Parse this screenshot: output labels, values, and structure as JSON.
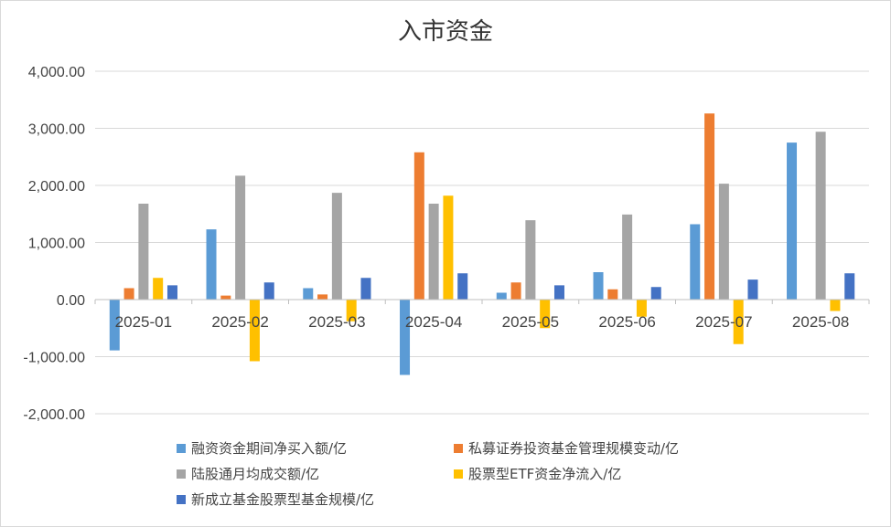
{
  "chart_data": {
    "type": "bar",
    "title": "入市资金",
    "categories": [
      "2025-01",
      "2025-02",
      "2025-03",
      "2025-04",
      "2025-05",
      "2025-06",
      "2025-07",
      "2025-08"
    ],
    "ylim": [
      -2000,
      4000
    ],
    "yticks": [
      4000,
      3000,
      2000,
      1000,
      0,
      -1000,
      -2000
    ],
    "ytick_labels": [
      "4,000.00",
      "3,000.00",
      "2,000.00",
      "1,000.00",
      "0.00",
      "-1,000.00",
      "-2,000.00"
    ],
    "grid": true,
    "legend_position": "bottom",
    "series": [
      {
        "name": "融资资金期间净买入额/亿",
        "color": "#5b9bd5",
        "values": [
          -890,
          1230,
          200,
          -1320,
          120,
          480,
          1320,
          2750
        ]
      },
      {
        "name": "私募证券投资基金管理规模变动/亿",
        "color": "#ed7d31",
        "values": [
          200,
          70,
          90,
          2580,
          300,
          180,
          3260,
          0
        ]
      },
      {
        "name": "陆股通月均成交额/亿",
        "color": "#a5a5a5",
        "values": [
          1680,
          2170,
          1870,
          1680,
          1390,
          1490,
          2030,
          2940
        ]
      },
      {
        "name": "股票型ETF资金净流入/亿",
        "color": "#ffc000",
        "values": [
          380,
          -1080,
          -380,
          1820,
          -500,
          -300,
          -780,
          -200
        ]
      },
      {
        "name": "新成立基金股票型基金规模/亿",
        "color": "#4472c4",
        "values": [
          250,
          300,
          380,
          460,
          250,
          220,
          350,
          460
        ]
      }
    ]
  }
}
